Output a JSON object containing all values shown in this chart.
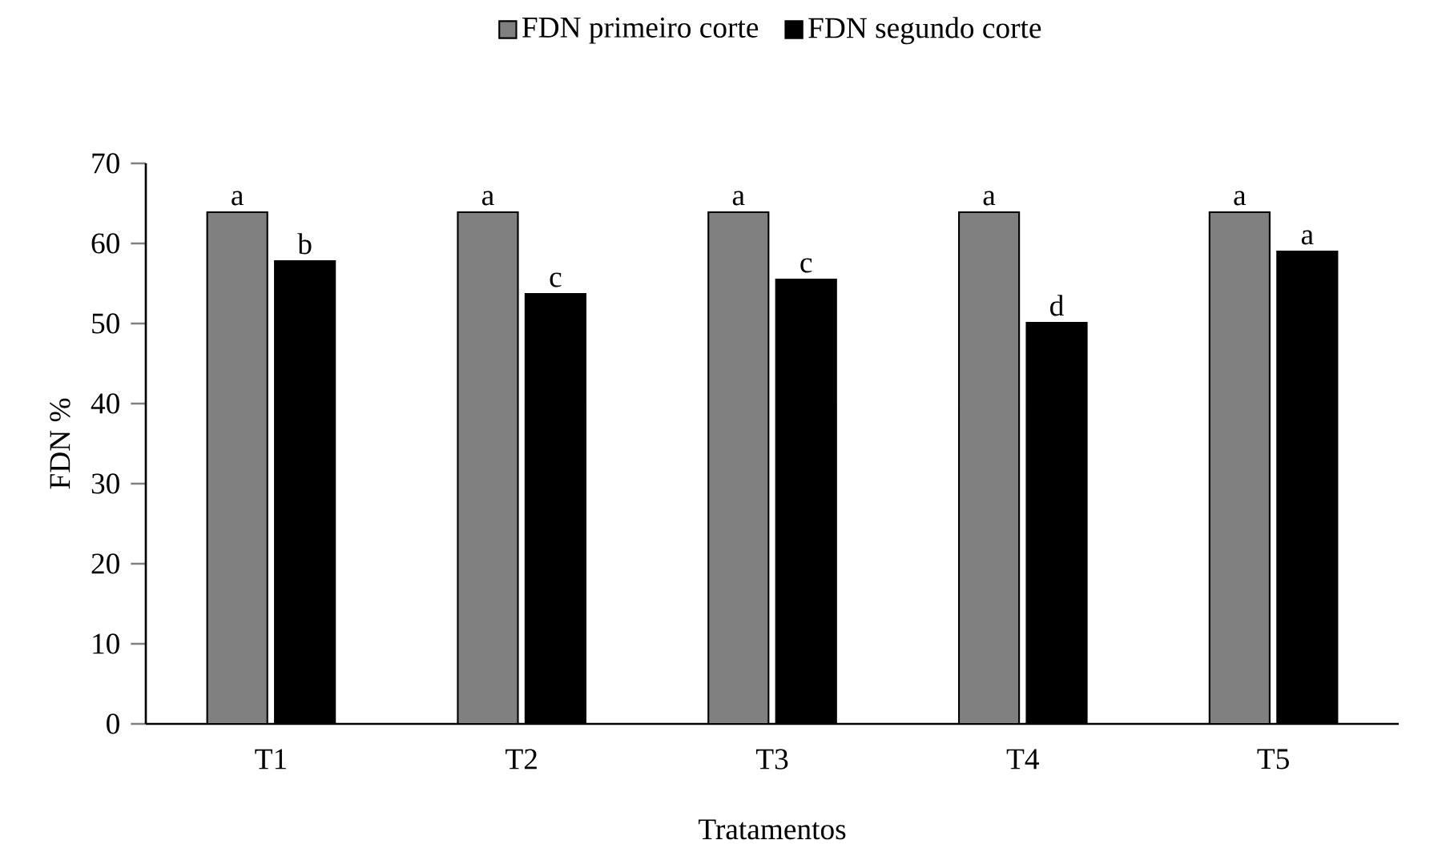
{
  "chart_data": {
    "type": "bar",
    "xlabel": "Tratamentos",
    "ylabel": "FDN %",
    "categories": [
      "T1",
      "T2",
      "T3",
      "T4",
      "T5"
    ],
    "series": [
      {
        "name": "FDN primeiro corte",
        "color": "#808080",
        "values": [
          63.9,
          63.9,
          63.9,
          63.9,
          63.9
        ]
      },
      {
        "name": "FDN segundo corte",
        "color": "#000000",
        "values": [
          57.8,
          53.7,
          55.5,
          50.1,
          59.0
        ]
      }
    ],
    "ylim": [
      0,
      70
    ],
    "yticks": [
      0,
      10,
      20,
      30,
      40,
      50,
      60,
      70
    ],
    "legend": "top",
    "annotations": [
      {
        "text": "a",
        "x": "T1",
        "y": 63.9
      },
      {
        "text": "b",
        "x": "T1",
        "y": 57.8
      },
      {
        "text": "a",
        "x": "T2",
        "y": 63.9
      },
      {
        "text": "c",
        "x": "T2",
        "y": 53.7
      },
      {
        "text": "a",
        "x": "T3",
        "y": 63.9
      },
      {
        "text": "c",
        "x": "T3",
        "y": 55.5
      },
      {
        "text": "a",
        "x": "T4",
        "y": 63.9
      },
      {
        "text": "d",
        "x": "T4",
        "y": 50.1
      },
      {
        "text": "a",
        "x": "T5",
        "y": 63.9
      },
      {
        "text": "a",
        "x": "T5",
        "y": 59.0
      }
    ]
  }
}
